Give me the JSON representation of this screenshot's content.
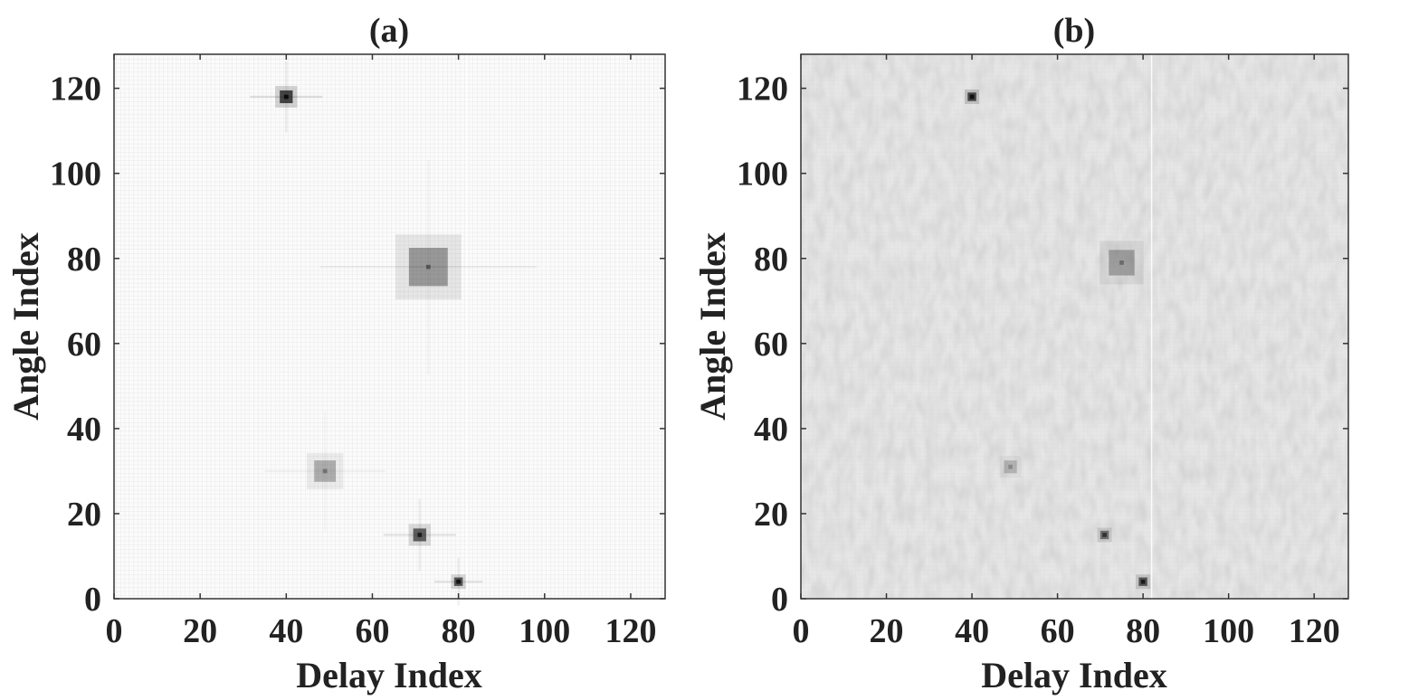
{
  "chart_data": [
    {
      "type": "heatmap",
      "title": "(a)",
      "xlabel": "Delay Index",
      "ylabel": "Angle Index",
      "xlim": [
        0,
        128
      ],
      "ylim": [
        0,
        128
      ],
      "xticks": [
        0,
        20,
        40,
        60,
        80,
        100,
        120
      ],
      "yticks": [
        0,
        20,
        40,
        60,
        80,
        100,
        120
      ],
      "colormap": "grayscale (white = low, dark = high)",
      "background": "near-white",
      "noise": "none",
      "peaks": [
        {
          "delay": 40,
          "angle": 118,
          "width": 3,
          "height": 3,
          "intensity": 0.9
        },
        {
          "delay": 73,
          "angle": 78,
          "width": 9,
          "height": 9,
          "intensity": 0.45
        },
        {
          "delay": 49,
          "angle": 30,
          "width": 5,
          "height": 5,
          "intensity": 0.35
        },
        {
          "delay": 71,
          "angle": 15,
          "width": 3,
          "height": 3,
          "intensity": 0.75
        },
        {
          "delay": 80,
          "angle": 4,
          "width": 2,
          "height": 2,
          "intensity": 0.8
        }
      ]
    },
    {
      "type": "heatmap",
      "title": "(b)",
      "xlabel": "Delay Index",
      "ylabel": "Angle Index",
      "xlim": [
        0,
        128
      ],
      "ylim": [
        0,
        128
      ],
      "xticks": [
        0,
        20,
        40,
        60,
        80,
        100,
        120
      ],
      "yticks": [
        0,
        20,
        40,
        60,
        80,
        100,
        120
      ],
      "colormap": "grayscale (white = low, dark = high)",
      "background": "light gray",
      "noise": "diagonal speckle",
      "peaks": [
        {
          "delay": 40,
          "angle": 118,
          "width": 2,
          "height": 2,
          "intensity": 0.85
        },
        {
          "delay": 75,
          "angle": 79,
          "width": 6,
          "height": 6,
          "intensity": 0.35
        },
        {
          "delay": 49,
          "angle": 31,
          "width": 3,
          "height": 3,
          "intensity": 0.25
        },
        {
          "delay": 71,
          "angle": 15,
          "width": 2,
          "height": 2,
          "intensity": 0.6
        },
        {
          "delay": 80,
          "angle": 4,
          "width": 2,
          "height": 2,
          "intensity": 0.75
        }
      ]
    }
  ]
}
